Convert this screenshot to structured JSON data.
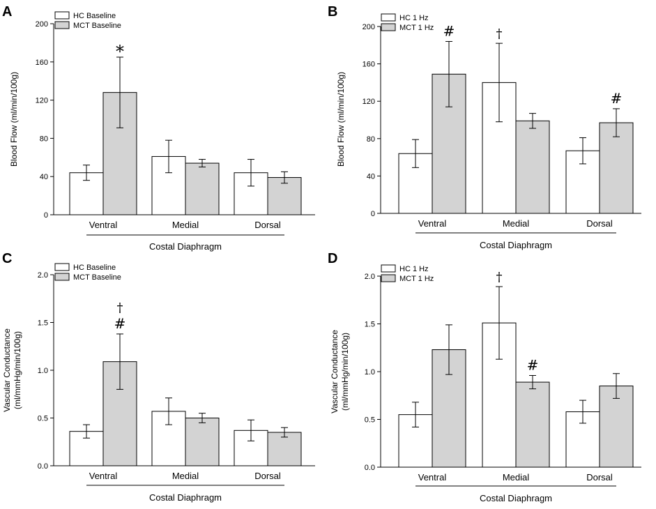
{
  "colors": {
    "hc": "#ffffff",
    "mct": "#d3d3d3",
    "stroke": "#000000"
  },
  "chart_data": [
    {
      "panel": "A",
      "type": "bar",
      "ylabel": [
        "Blood Flow (ml/min/100g)"
      ],
      "ylim": [
        0,
        200
      ],
      "yticks": [
        0,
        40,
        80,
        120,
        160,
        200
      ],
      "tick_decimals": 0,
      "categories": [
        "Ventral",
        "Medial",
        "Dorsal"
      ],
      "group_label": "Costal Diaphragm",
      "series": [
        {
          "name": "HC Baseline",
          "color_key": "hc",
          "values": [
            44,
            61,
            44
          ],
          "errors": [
            8,
            17,
            14
          ]
        },
        {
          "name": "MCT Baseline",
          "color_key": "mct",
          "values": [
            128,
            54,
            39
          ],
          "errors": [
            37,
            4,
            6
          ]
        }
      ],
      "annotations": [
        {
          "series": 1,
          "category": 0,
          "text": [
            "*"
          ]
        }
      ]
    },
    {
      "panel": "B",
      "type": "bar",
      "ylabel": [
        "Blood Flow (ml/min/100g)"
      ],
      "ylim": [
        0,
        200
      ],
      "yticks": [
        0,
        40,
        80,
        120,
        160,
        200
      ],
      "tick_decimals": 0,
      "categories": [
        "Ventral",
        "Medial",
        "Dorsal"
      ],
      "group_label": "Costal Diaphragm",
      "series": [
        {
          "name": "HC 1 Hz",
          "color_key": "hc",
          "values": [
            64,
            140,
            67
          ],
          "errors": [
            15,
            42,
            14
          ]
        },
        {
          "name": "MCT 1 Hz",
          "color_key": "mct",
          "values": [
            149,
            99,
            97
          ],
          "errors": [
            35,
            8,
            15
          ]
        }
      ],
      "annotations": [
        {
          "series": 0,
          "category": 1,
          "text": [
            "†"
          ]
        },
        {
          "series": 1,
          "category": 0,
          "text": [
            "#"
          ]
        },
        {
          "series": 1,
          "category": 2,
          "text": [
            "#"
          ]
        }
      ]
    },
    {
      "panel": "C",
      "type": "bar",
      "ylabel": [
        "Vascular Conductance",
        "(ml/mmHg/min/100g)"
      ],
      "ylim": [
        0,
        2.0
      ],
      "yticks": [
        0,
        0.5,
        1.0,
        1.5,
        2.0
      ],
      "tick_decimals": 1,
      "categories": [
        "Ventral",
        "Medial",
        "Dorsal"
      ],
      "group_label": "Costal Diaphragm",
      "series": [
        {
          "name": "HC Baseline",
          "color_key": "hc",
          "values": [
            0.36,
            0.57,
            0.37
          ],
          "errors": [
            0.07,
            0.14,
            0.11
          ]
        },
        {
          "name": "MCT Baseline",
          "color_key": "mct",
          "values": [
            1.09,
            0.5,
            0.35
          ],
          "errors": [
            0.29,
            0.05,
            0.05
          ]
        }
      ],
      "annotations": [
        {
          "series": 1,
          "category": 0,
          "text": [
            "†",
            "#"
          ]
        }
      ]
    },
    {
      "panel": "D",
      "type": "bar",
      "ylabel": [
        "Vascular Conductance",
        "(ml/mmHg/min/100g)"
      ],
      "ylim": [
        0,
        2.0
      ],
      "yticks": [
        0,
        0.5,
        1.0,
        1.5,
        2.0
      ],
      "tick_decimals": 1,
      "categories": [
        "Ventral",
        "Medial",
        "Dorsal"
      ],
      "group_label": "Costal Diaphragm",
      "series": [
        {
          "name": "HC 1 Hz",
          "color_key": "hc",
          "values": [
            0.55,
            1.51,
            0.58
          ],
          "errors": [
            0.13,
            0.38,
            0.12
          ]
        },
        {
          "name": "MCT 1 Hz",
          "color_key": "mct",
          "values": [
            1.23,
            0.89,
            0.85
          ],
          "errors": [
            0.26,
            0.07,
            0.13
          ]
        }
      ],
      "annotations": [
        {
          "series": 0,
          "category": 1,
          "text": [
            "†"
          ]
        },
        {
          "series": 1,
          "category": 1,
          "text": [
            "#"
          ]
        }
      ]
    }
  ]
}
